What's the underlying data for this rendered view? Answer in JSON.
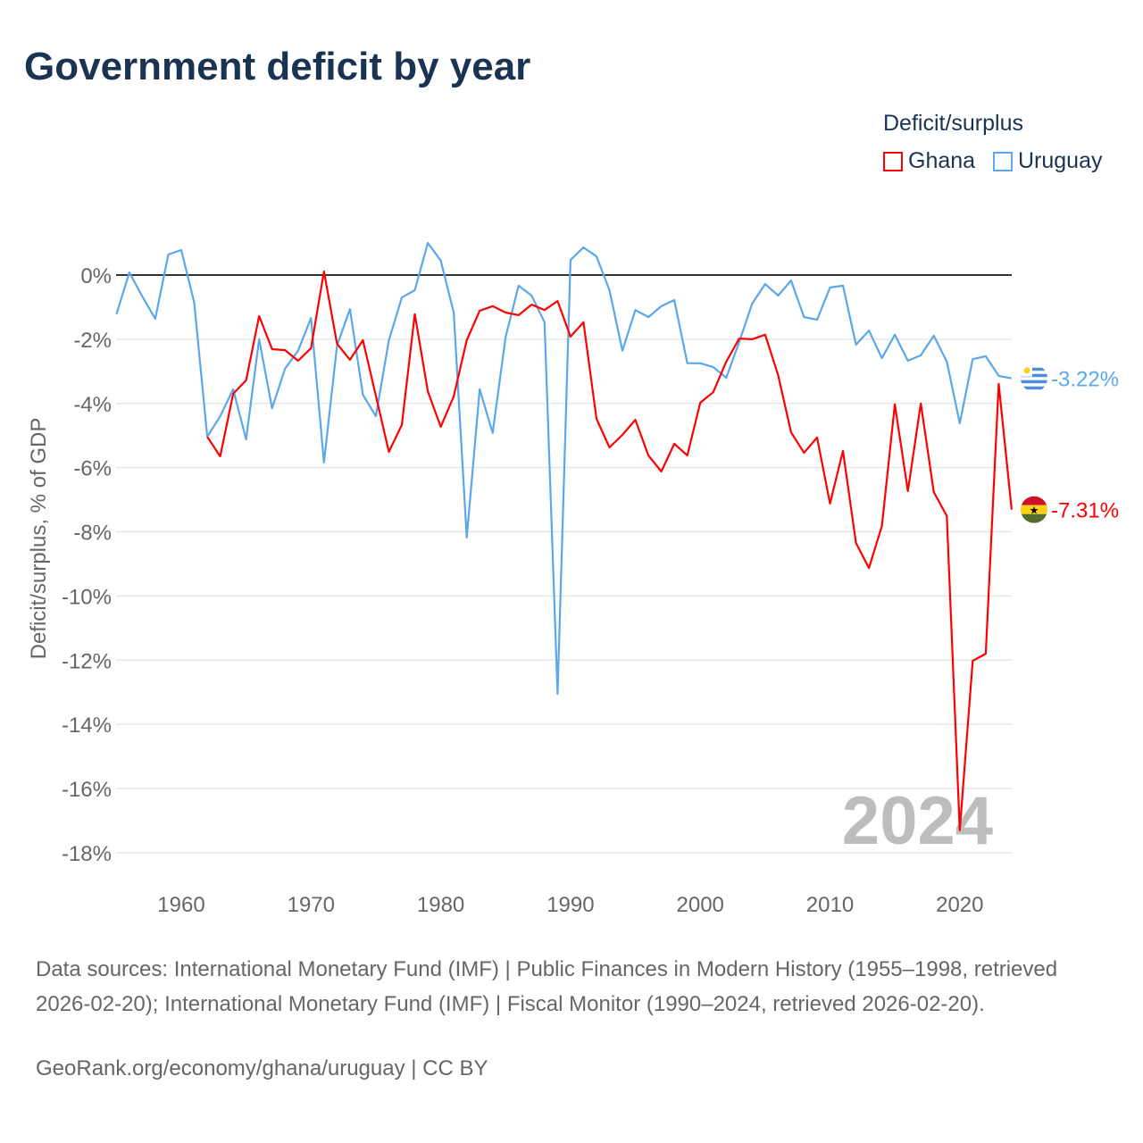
{
  "title": "Government deficit by year",
  "legend": {
    "title": "Deficit/surplus",
    "items": [
      {
        "name": "Ghana",
        "color": "#ff0000"
      },
      {
        "name": "Uruguay",
        "color": "#5ba7ec"
      }
    ]
  },
  "footer": {
    "sources": "Data sources: International Monetary Fund (IMF) | Public Finances in Modern History (1955–1998, retrieved 2026-02-20); International Monetary Fund (IMF) | Fiscal Monitor (1990–2024, retrieved 2026-02-20).",
    "credit": "GeoRank.org/economy/ghana/uruguay | CC BY"
  },
  "chart_data": {
    "type": "line",
    "title": "Government deficit by year",
    "ylabel": "Deficit/surplus, % of GDP",
    "xlabel": "",
    "xlim": [
      1955,
      2024
    ],
    "ylim": [
      -19,
      1.2
    ],
    "xticks": [
      1960,
      1970,
      1980,
      1990,
      2000,
      2010,
      2020
    ],
    "yticks": [
      0,
      -2,
      -4,
      -6,
      -8,
      -10,
      -12,
      -14,
      -16,
      -18
    ],
    "ytick_labels": [
      "0%",
      "-2%",
      "-4%",
      "-6%",
      "-8%",
      "-10%",
      "-12%",
      "-14%",
      "-16%",
      "-18%"
    ],
    "year_watermark": "2024",
    "series": [
      {
        "name": "Ghana",
        "color": "#ff0000",
        "end_label": "-7.31%",
        "start": 1962,
        "values": [
          -5.04,
          -5.65,
          -3.7,
          -3.28,
          -1.28,
          -2.31,
          -2.34,
          -2.67,
          -2.28,
          0.11,
          -2.14,
          -2.64,
          -2.03,
          -3.76,
          -5.51,
          -4.67,
          -1.22,
          -3.62,
          -4.73,
          -3.78,
          -2.03,
          -1.11,
          -0.97,
          -1.17,
          -1.25,
          -0.92,
          -1.09,
          -0.81,
          -1.92,
          -1.47,
          -4.48,
          -5.37,
          -4.98,
          -4.51,
          -5.62,
          -6.12,
          -5.26,
          -5.62,
          -3.98,
          -3.65,
          -2.7,
          -1.98,
          -2.0,
          -1.86,
          -3.12,
          -4.9,
          -5.54,
          -5.06,
          -7.12,
          -5.48,
          -8.35,
          -9.13,
          -7.82,
          -4.03,
          -6.73,
          -4.0,
          -6.76,
          -7.51,
          -17.3,
          -12.02,
          -11.8,
          -3.39,
          -7.31
        ]
      },
      {
        "name": "Uruguay",
        "color": "#5ba7ec",
        "end_label": "-3.22%",
        "start": 1955,
        "values": [
          -1.22,
          0.08,
          -0.67,
          -1.36,
          0.64,
          0.78,
          -0.86,
          -5.04,
          -4.4,
          -3.56,
          -5.12,
          -2.0,
          -4.15,
          -2.92,
          -2.36,
          -1.34,
          -5.84,
          -2.2,
          -1.06,
          -3.73,
          -4.4,
          -2.03,
          -0.7,
          -0.47,
          1.0,
          0.45,
          -1.17,
          -8.18,
          -3.56,
          -4.92,
          -1.92,
          -0.33,
          -0.64,
          -1.47,
          -13.05,
          0.47,
          0.86,
          0.58,
          -0.47,
          -2.36,
          -1.09,
          -1.31,
          -0.97,
          -0.78,
          -2.75,
          -2.75,
          -2.87,
          -3.2,
          -2.09,
          -0.89,
          -0.28,
          -0.64,
          -0.17,
          -1.31,
          -1.39,
          -0.39,
          -0.33,
          -2.17,
          -1.73,
          -2.59,
          -1.86,
          -2.67,
          -2.5,
          -1.89,
          -2.7,
          -4.62,
          -2.62,
          -2.53,
          -3.14,
          -3.22
        ]
      }
    ]
  }
}
